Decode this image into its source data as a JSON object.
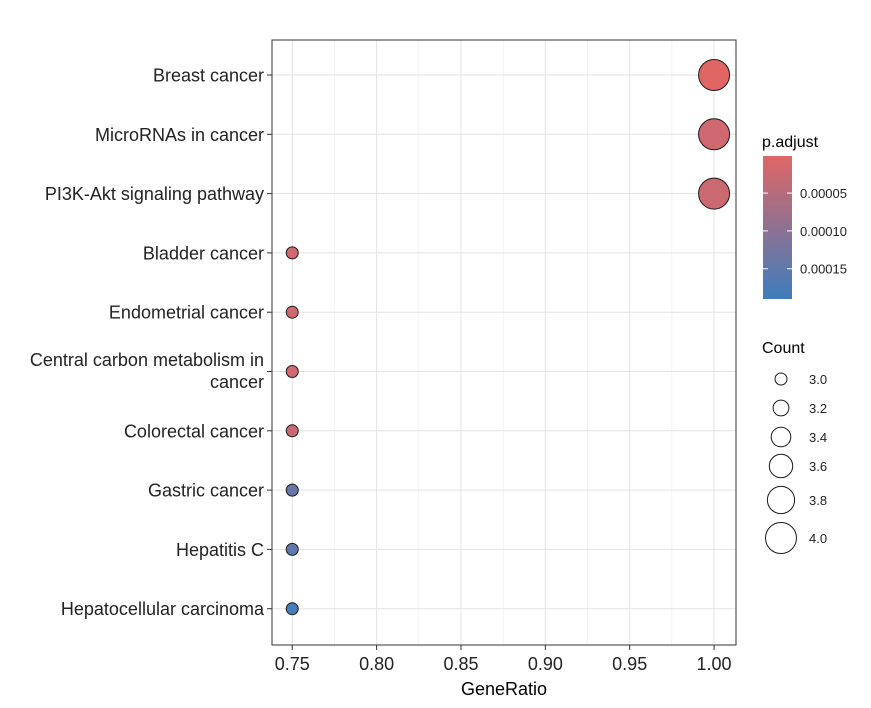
{
  "chart_data": {
    "type": "scatter",
    "xlabel": "GeneRatio",
    "xlim": [
      0.738,
      1.013
    ],
    "x_ticks": [
      "0.75",
      "0.80",
      "0.85",
      "0.90",
      "0.95",
      "1.00"
    ],
    "x_tick_values": [
      0.75,
      0.8,
      0.85,
      0.9,
      0.95,
      1.0
    ],
    "grid": true,
    "legend_position": "right",
    "categories": [
      "Breast cancer",
      "MicroRNAs in cancer",
      "PI3K-Akt signaling pathway",
      "Bladder cancer",
      "Endometrial cancer",
      "Central carbon metabolism in cancer",
      "Colorectal cancer",
      "Gastric cancer",
      "Hepatitis C",
      "Hepatocellular carcinoma"
    ],
    "category_label_lines": [
      [
        "Breast cancer"
      ],
      [
        "MicroRNAs in cancer"
      ],
      [
        "PI3K-Akt signaling pathway"
      ],
      [
        "Bladder cancer"
      ],
      [
        "Endometrial cancer"
      ],
      [
        "Central carbon metabolism in",
        "cancer"
      ],
      [
        "Colorectal cancer"
      ],
      [
        "Gastric cancer"
      ],
      [
        "Hepatitis C"
      ],
      [
        "Hepatocellular carcinoma"
      ]
    ],
    "points": [
      {
        "term": "Breast cancer",
        "gene_ratio": 1.0,
        "count": 4,
        "p_adjust": 1e-06
      },
      {
        "term": "MicroRNAs in cancer",
        "gene_ratio": 1.0,
        "count": 4,
        "p_adjust": 2e-05
      },
      {
        "term": "PI3K-Akt signaling pathway",
        "gene_ratio": 1.0,
        "count": 4,
        "p_adjust": 2.5e-05
      },
      {
        "term": "Bladder cancer",
        "gene_ratio": 0.75,
        "count": 3,
        "p_adjust": 2e-05
      },
      {
        "term": "Endometrial cancer",
        "gene_ratio": 0.75,
        "count": 3,
        "p_adjust": 2.2e-05
      },
      {
        "term": "Central carbon metabolism in cancer",
        "gene_ratio": 0.75,
        "count": 3,
        "p_adjust": 2.4e-05
      },
      {
        "term": "Colorectal cancer",
        "gene_ratio": 0.75,
        "count": 3,
        "p_adjust": 2.8e-05
      },
      {
        "term": "Gastric cancer",
        "gene_ratio": 0.75,
        "count": 3,
        "p_adjust": 0.00014
      },
      {
        "term": "Hepatitis C",
        "gene_ratio": 0.75,
        "count": 3,
        "p_adjust": 0.00015
      },
      {
        "term": "Hepatocellular carcinoma",
        "gene_ratio": 0.75,
        "count": 3,
        "p_adjust": 0.00018
      }
    ],
    "color_legend": {
      "title": "p.adjust",
      "low_color": "#E06666",
      "high_color": "#3D7DBD",
      "range": [
        1e-06,
        0.00019
      ],
      "ticks": [
        "0.00005",
        "0.00010",
        "0.00015"
      ],
      "tick_values": [
        5e-05,
        0.0001,
        0.00015
      ]
    },
    "size_legend": {
      "title": "Count",
      "labels": [
        "3.0",
        "3.2",
        "3.4",
        "3.6",
        "3.8",
        "4.0"
      ],
      "values": [
        3.0,
        3.2,
        3.4,
        3.6,
        3.8,
        4.0
      ]
    }
  }
}
